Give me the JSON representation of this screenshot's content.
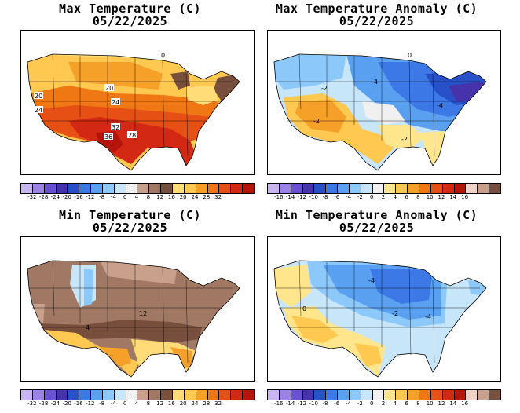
{
  "panels": [
    {
      "id": "max-temp",
      "title": "Max Temperature (C)",
      "date": "05/22/2025",
      "colorbar": [
        "#c8b4f0",
        "#9a82e6",
        "#6a50d2",
        "#4632aa",
        "#2850c8",
        "#3c78e6",
        "#5aa0f0",
        "#8cc8fa",
        "#c8e6fa",
        "#f0f0f0",
        "#c8a08c",
        "#a07864",
        "#784e3c",
        "#ffdc78",
        "#ffc850",
        "#f5a028",
        "#f07814",
        "#e65014",
        "#d22814",
        "#b4140a"
      ],
      "ticks": [
        "-32",
        "-28",
        "-24",
        "-20",
        "-16",
        "-12",
        "-8",
        "-4",
        "0",
        "4",
        "8",
        "12",
        "16",
        "20",
        "24",
        "28",
        "32"
      ],
      "labels": [
        "20",
        "20",
        "24",
        "24",
        "32",
        "36",
        "28",
        "0"
      ]
    },
    {
      "id": "max-anom",
      "title": "Max Temperature Anomaly (C)",
      "date": "05/22/2025",
      "colorbar": [
        "#c8b4f0",
        "#9a82e6",
        "#6a50d2",
        "#4632aa",
        "#2850c8",
        "#3c78e6",
        "#5aa0f0",
        "#8cc8fa",
        "#c8e6fa",
        "#f0f0f0",
        "#ffe68c",
        "#ffc850",
        "#f5a028",
        "#f07814",
        "#e65014",
        "#d22814",
        "#b4140a",
        "#f0d2c8",
        "#c8a08c",
        "#785040"
      ],
      "ticks": [
        "-16",
        "-14",
        "-12",
        "-10",
        "-8",
        "-6",
        "-4",
        "-2",
        "0",
        "2",
        "4",
        "6",
        "8",
        "10",
        "12",
        "14",
        "16"
      ],
      "labels": [
        "-2",
        "-4",
        "-4",
        "-2",
        "-2",
        "0"
      ]
    },
    {
      "id": "min-temp",
      "title": "Min Temperature (C)",
      "date": "05/22/2025",
      "colorbar": [
        "#c8b4f0",
        "#9a82e6",
        "#6a50d2",
        "#4632aa",
        "#2850c8",
        "#3c78e6",
        "#5aa0f0",
        "#8cc8fa",
        "#c8e6fa",
        "#f0f0f0",
        "#c8a08c",
        "#a07864",
        "#784e3c",
        "#ffdc78",
        "#ffc850",
        "#f5a028",
        "#f07814",
        "#e65014",
        "#d22814",
        "#b4140a"
      ],
      "ticks": [
        "-32",
        "-28",
        "-24",
        "-20",
        "-16",
        "-12",
        "-8",
        "-4",
        "0",
        "4",
        "8",
        "12",
        "16",
        "20",
        "24",
        "28",
        "32"
      ],
      "labels": [
        "12",
        "4"
      ]
    },
    {
      "id": "min-anom",
      "title": "Min Temperature Anomaly (C)",
      "date": "05/22/2025",
      "colorbar": [
        "#c8b4f0",
        "#9a82e6",
        "#6a50d2",
        "#4632aa",
        "#2850c8",
        "#3c78e6",
        "#5aa0f0",
        "#8cc8fa",
        "#c8e6fa",
        "#f0f0f0",
        "#ffe68c",
        "#ffc850",
        "#f5a028",
        "#f07814",
        "#e65014",
        "#d22814",
        "#b4140a",
        "#f0d2c8",
        "#c8a08c",
        "#785040"
      ],
      "ticks": [
        "-16",
        "-14",
        "-12",
        "-10",
        "-8",
        "-6",
        "-4",
        "-2",
        "0",
        "2",
        "4",
        "6",
        "8",
        "10",
        "12",
        "14",
        "16"
      ],
      "labels": [
        "-4",
        "-2",
        "-4",
        "0"
      ]
    }
  ]
}
